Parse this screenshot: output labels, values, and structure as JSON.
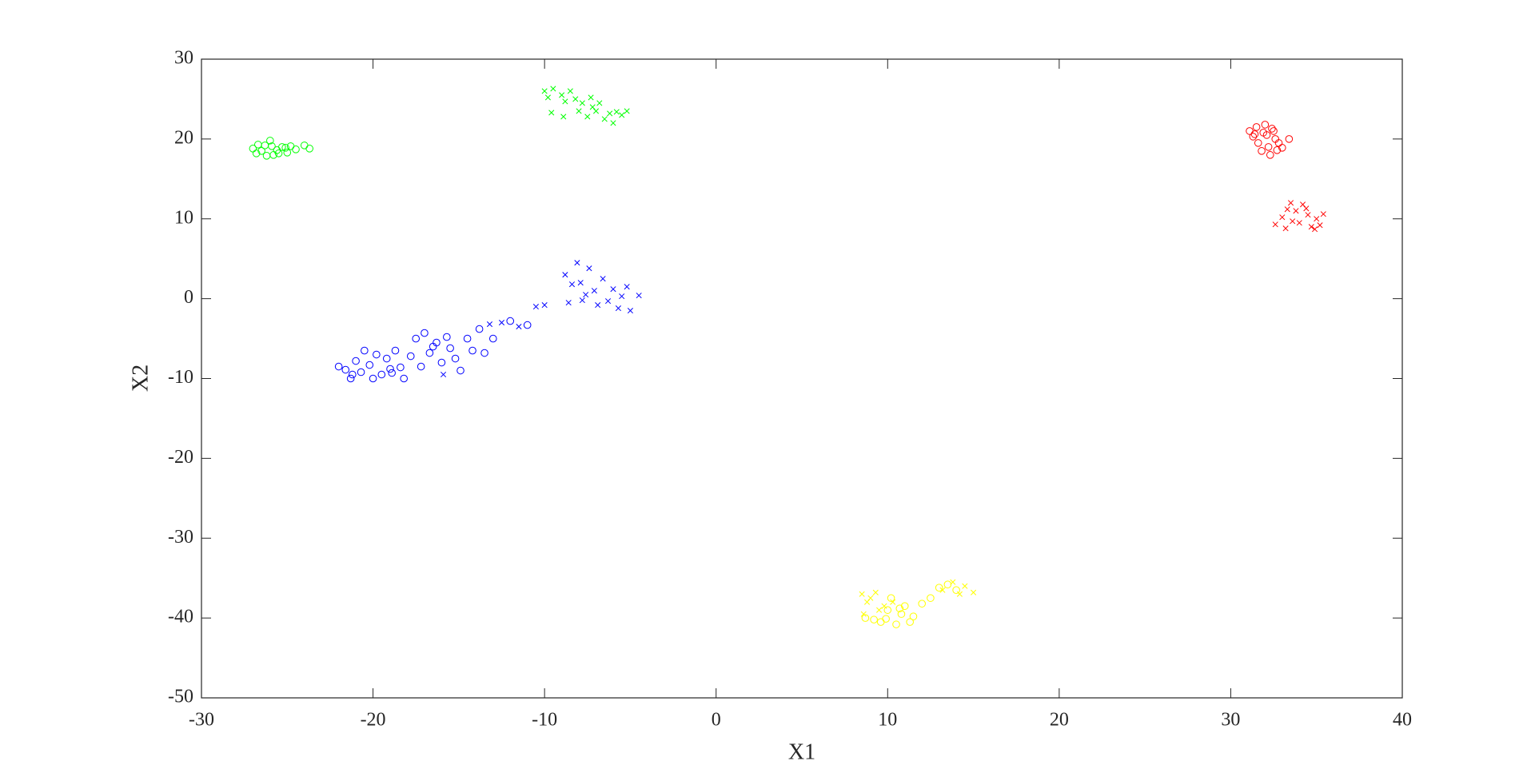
{
  "chart_data": {
    "type": "scatter",
    "xlabel": "X1",
    "ylabel": "X2",
    "xlim": [
      -30,
      40
    ],
    "ylim": [
      -50,
      30
    ],
    "xticks": [
      -30,
      -20,
      -10,
      0,
      10,
      20,
      30,
      40
    ],
    "yticks": [
      -50,
      -40,
      -30,
      -20,
      -10,
      0,
      10,
      20,
      30
    ],
    "grid": false,
    "box": true,
    "series": [
      {
        "color": "#00ff00",
        "marker": "circle",
        "x": [
          -27,
          -26.8,
          -26.5,
          -26.3,
          -26,
          -25.8,
          -25.6,
          -25.3,
          -25,
          -24.8,
          -24.5,
          -24,
          -23.7,
          -26.2,
          -25.5,
          -26.7,
          -25.9,
          -25.1
        ],
        "values": [
          18.8,
          18.2,
          18.5,
          19.2,
          19.8,
          18,
          18.6,
          19,
          18.3,
          19.1,
          18.7,
          19.2,
          18.8,
          17.9,
          18.2,
          19.3,
          19.1,
          18.9
        ]
      },
      {
        "color": "#00ff00",
        "marker": "cross",
        "x": [
          -10,
          -9.8,
          -9.5,
          -9,
          -8.8,
          -8.5,
          -8.2,
          -8,
          -7.8,
          -7.5,
          -7.2,
          -7,
          -6.8,
          -6.5,
          -6.2,
          -6,
          -5.5,
          -5.2,
          -9.6,
          -8.9,
          -7.3,
          -5.8
        ],
        "values": [
          26,
          25.2,
          26.3,
          25.5,
          24.7,
          26,
          25,
          23.5,
          24.5,
          22.8,
          24,
          23.5,
          24.5,
          22.5,
          23.2,
          22,
          23,
          23.5,
          23.3,
          22.8,
          25.2,
          23.4
        ]
      },
      {
        "color": "#ff0000",
        "marker": "circle",
        "x": [
          31.1,
          31.3,
          31.5,
          31.6,
          31.8,
          32,
          32.1,
          32.2,
          32.3,
          32.5,
          32.6,
          32.8,
          33,
          33.4,
          31.9,
          32.4,
          31.4,
          32.7
        ],
        "values": [
          21,
          20.3,
          21.5,
          19.5,
          18.5,
          21.8,
          20.5,
          19,
          18,
          21,
          20,
          19.5,
          18.9,
          20,
          20.8,
          21.3,
          20.6,
          18.6
        ]
      },
      {
        "color": "#ff0000",
        "marker": "cross",
        "x": [
          32.6,
          33,
          33.2,
          33.5,
          33.8,
          34,
          34.2,
          34.5,
          34.7,
          35,
          35.2,
          35.4,
          33.6,
          34.4,
          33.3,
          34.9
        ],
        "values": [
          9.3,
          10.2,
          8.8,
          12,
          11,
          9.5,
          11.8,
          10.5,
          9,
          10,
          9.2,
          10.6,
          9.7,
          11.3,
          11.2,
          8.7
        ]
      },
      {
        "color": "#0000ff",
        "marker": "circle",
        "x": [
          -22,
          -21.6,
          -21.3,
          -21,
          -20.7,
          -20.5,
          -20.2,
          -20,
          -19.8,
          -19.5,
          -19.2,
          -19,
          -18.7,
          -18.4,
          -18.2,
          -17.8,
          -17.5,
          -17.2,
          -17,
          -16.7,
          -16.3,
          -16,
          -15.7,
          -15.5,
          -15.2,
          -14.9,
          -14.5,
          -14.2,
          -13.8,
          -13.5,
          -13,
          -12,
          -11,
          -21.2,
          -18.9,
          -16.5
        ],
        "values": [
          -8.5,
          -8.9,
          -10,
          -7.8,
          -9.2,
          -6.5,
          -8.3,
          -10,
          -7,
          -9.5,
          -7.5,
          -8.8,
          -6.5,
          -8.6,
          -10,
          -7.2,
          -5,
          -8.5,
          -4.3,
          -6.8,
          -5.5,
          -8,
          -4.8,
          -6.2,
          -7.5,
          -9,
          -5,
          -6.5,
          -3.8,
          -6.8,
          -5,
          -2.8,
          -3.3,
          -9.5,
          -9.3,
          -6
        ]
      },
      {
        "color": "#0000ff",
        "marker": "cross",
        "x": [
          -15.9,
          -13.2,
          -12.5,
          -11.5,
          -10.5,
          -10,
          -8.8,
          -8.6,
          -8.4,
          -8.1,
          -7.9,
          -7.6,
          -7.4,
          -7.1,
          -6.9,
          -6.6,
          -6.3,
          -6,
          -5.7,
          -5.5,
          -5.2,
          -5,
          -4.5,
          -7.8
        ],
        "values": [
          -9.5,
          -3.2,
          -3,
          -3.5,
          -1,
          -0.8,
          3,
          -0.5,
          1.8,
          4.5,
          2,
          0.5,
          3.8,
          1,
          -0.8,
          2.5,
          -0.3,
          1.2,
          -1.2,
          0.3,
          1.5,
          -1.5,
          0.4,
          -0.2
        ]
      },
      {
        "color": "#ffff00",
        "marker": "circle",
        "x": [
          8.7,
          9.2,
          9.6,
          10,
          10.2,
          10.5,
          10.8,
          11,
          11.3,
          11.5,
          12,
          12.5,
          13,
          13.5,
          14,
          9.9,
          10.7
        ],
        "values": [
          -40,
          -40.2,
          -40.5,
          -39,
          -37.5,
          -40.8,
          -39.5,
          -38.5,
          -40.5,
          -39.8,
          -38.2,
          -37.5,
          -36.2,
          -35.8,
          -36.5,
          -40.1,
          -38.8
        ]
      },
      {
        "color": "#ffff00",
        "marker": "cross",
        "x": [
          8.5,
          8.8,
          9,
          9.3,
          9.5,
          9.8,
          10.3,
          13.2,
          13.8,
          14.2,
          14.5,
          15,
          8.6
        ],
        "values": [
          -37,
          -38,
          -37.5,
          -36.8,
          -39,
          -38.5,
          -38,
          -36.5,
          -35.5,
          -37,
          -36,
          -36.8,
          -39.5
        ]
      }
    ]
  }
}
